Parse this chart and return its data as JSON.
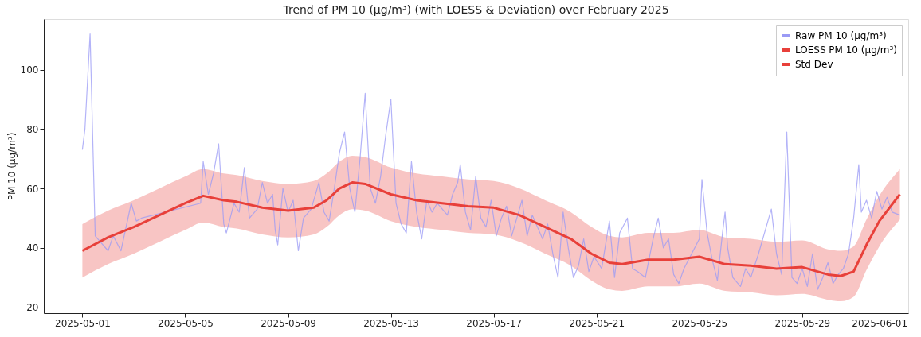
{
  "chart_data": {
    "type": "line",
    "title": "Trend of PM 10 (µg/m³) (with LOESS & Deviation) over February 2025",
    "ylabel": "PM 10 (µg/m³)",
    "xlim": [
      "2025-04-29T12:00",
      "2025-06-02T03:00"
    ],
    "ylim": [
      18,
      117
    ],
    "xticks": [
      "2025-05-01",
      "2025-05-05",
      "2025-05-09",
      "2025-05-13",
      "2025-05-17",
      "2025-05-21",
      "2025-05-25",
      "2025-05-29",
      "2025-06-01"
    ],
    "yticks": [
      20,
      40,
      60,
      80,
      100
    ],
    "grid": false,
    "legend": "top right",
    "marker": "none",
    "line_style": "solid",
    "annotations": [
      "Std Dev"
    ],
    "series": [
      {
        "name": "Raw PM 10 (µg/m³)",
        "color": "#9a9af5",
        "x": [
          "2025-05-01T00:00",
          "2025-05-01T02:24",
          "2025-05-01T07:12",
          "2025-05-01T12:00",
          "2025-05-01T16:48",
          "2025-05-02T00:00",
          "2025-05-02T04:48",
          "2025-05-02T12:00",
          "2025-05-02T16:48",
          "2025-05-02T21:36",
          "2025-05-03T02:24",
          "2025-05-03T07:12",
          "2025-05-05T14:24",
          "2025-05-05T16:48",
          "2025-05-05T21:36",
          "2025-05-06T02:24",
          "2025-05-06T07:12",
          "2025-05-06T12:00",
          "2025-05-06T14:24",
          "2025-05-06T21:36",
          "2025-05-07T02:24",
          "2025-05-07T07:12",
          "2025-05-07T12:00",
          "2025-05-07T19:12",
          "2025-05-08T00:00",
          "2025-05-08T04:48",
          "2025-05-08T09:36",
          "2025-05-08T12:00",
          "2025-05-08T14:24",
          "2025-05-08T19:12",
          "2025-05-09T00:00",
          "2025-05-09T04:48",
          "2025-05-09T09:36",
          "2025-05-09T14:24",
          "2025-05-09T21:36",
          "2025-05-10T04:48",
          "2025-05-10T09:36",
          "2025-05-10T14:24",
          "2025-05-10T19:12",
          "2025-05-11T00:00",
          "2025-05-11T04:48",
          "2025-05-11T09:36",
          "2025-05-11T14:24",
          "2025-05-11T19:12",
          "2025-05-12T00:00",
          "2025-05-12T04:48",
          "2025-05-12T09:36",
          "2025-05-12T14:24",
          "2025-05-12T19:12",
          "2025-05-13T00:00",
          "2025-05-13T04:48",
          "2025-05-13T09:36",
          "2025-05-13T14:24",
          "2025-05-13T19:12",
          "2025-05-14T00:00",
          "2025-05-14T04:48",
          "2025-05-14T09:36",
          "2025-05-14T14:24",
          "2025-05-14T19:12",
          "2025-05-15T00:00",
          "2025-05-15T04:48",
          "2025-05-15T09:36",
          "2025-05-15T14:24",
          "2025-05-15T16:48",
          "2025-05-15T21:36",
          "2025-05-16T02:24",
          "2025-05-16T07:12",
          "2025-05-16T12:00",
          "2025-05-16T16:48",
          "2025-05-16T21:36",
          "2025-05-17T02:24",
          "2025-05-17T07:12",
          "2025-05-17T12:00",
          "2025-05-17T16:48",
          "2025-05-17T21:36",
          "2025-05-18T02:24",
          "2025-05-18T07:12",
          "2025-05-18T12:00",
          "2025-05-18T16:48",
          "2025-05-18T21:36",
          "2025-05-19T02:24",
          "2025-05-19T07:12",
          "2025-05-19T12:00",
          "2025-05-19T16:48",
          "2025-05-19T21:36",
          "2025-05-20T02:24",
          "2025-05-20T07:12",
          "2025-05-20T12:00",
          "2025-05-20T16:48",
          "2025-05-20T21:36",
          "2025-05-21T04:48",
          "2025-05-21T12:00",
          "2025-05-21T16:48",
          "2025-05-21T21:36",
          "2025-05-22T04:48",
          "2025-05-22T09:36",
          "2025-05-22T14:24",
          "2025-05-22T21:36",
          "2025-05-23T04:48",
          "2025-05-23T09:36",
          "2025-05-23T14:24",
          "2025-05-23T19:12",
          "2025-05-24T00:00",
          "2025-05-24T04:48",
          "2025-05-24T09:36",
          "2025-05-24T16:48",
          "2025-05-25T00:00",
          "2025-05-25T02:24",
          "2025-05-25T07:12",
          "2025-05-25T12:00",
          "2025-05-25T16:48",
          "2025-05-25T21:36",
          "2025-05-26T00:00",
          "2025-05-26T02:24",
          "2025-05-26T07:12",
          "2025-05-26T14:24",
          "2025-05-26T19:12",
          "2025-05-27T00:00",
          "2025-05-27T07:12",
          "2025-05-27T19:12",
          "2025-05-28T00:00",
          "2025-05-28T04:48",
          "2025-05-28T09:36",
          "2025-05-28T14:24",
          "2025-05-28T19:12",
          "2025-05-29T00:00",
          "2025-05-29T04:48",
          "2025-05-29T09:36",
          "2025-05-29T14:24",
          "2025-05-29T19:12",
          "2025-05-30T00:00",
          "2025-05-30T04:48",
          "2025-05-30T09:36",
          "2025-05-30T14:24",
          "2025-05-30T19:12",
          "2025-05-31T00:00",
          "2025-05-31T04:48",
          "2025-05-31T07:12",
          "2025-05-31T12:00",
          "2025-05-31T16:48",
          "2025-05-31T21:36",
          "2025-06-01T02:24",
          "2025-06-01T07:12",
          "2025-06-01T12:00",
          "2025-06-01T19:12"
        ],
        "values": [
          73,
          80,
          112,
          44,
          42,
          39,
          44,
          39,
          47,
          55,
          49,
          50,
          55,
          69,
          58,
          65,
          75,
          48,
          45,
          55,
          52,
          67,
          50,
          53,
          62,
          55,
          58,
          46,
          41,
          60,
          52,
          56,
          39,
          50,
          53,
          62,
          52,
          49,
          60,
          72,
          79,
          60,
          52,
          70,
          92,
          60,
          55,
          64,
          78,
          90,
          55,
          48,
          45,
          69,
          52,
          43,
          56,
          52,
          55,
          53,
          51,
          58,
          62,
          68,
          52,
          46,
          64,
          50,
          47,
          56,
          44,
          50,
          54,
          44,
          50,
          56,
          44,
          51,
          47,
          43,
          48,
          38,
          30,
          52,
          40,
          30,
          34,
          43,
          32,
          37,
          33,
          49,
          30,
          45,
          50,
          33,
          32,
          30,
          43,
          50,
          40,
          43,
          31,
          28,
          33,
          38,
          43,
          63,
          45,
          36,
          29,
          45,
          52,
          40,
          30,
          27,
          33,
          30,
          38,
          53,
          38,
          31,
          79,
          30,
          28,
          33,
          27,
          38,
          26,
          30,
          35,
          28,
          31,
          33,
          38,
          50,
          68,
          52,
          56,
          50,
          59,
          53,
          57,
          52,
          51
        ]
      },
      {
        "name": "LOESS PM 10 (µg/m³)",
        "color": "#e8403a",
        "x": [
          "2025-05-01T00:00",
          "2025-05-02T00:00",
          "2025-05-03T00:00",
          "2025-05-04T00:00",
          "2025-05-05T00:00",
          "2025-05-05T16:48",
          "2025-05-06T12:00",
          "2025-05-07T00:00",
          "2025-05-08T00:00",
          "2025-05-09T00:00",
          "2025-05-10T00:00",
          "2025-05-10T12:00",
          "2025-05-11T00:00",
          "2025-05-11T12:00",
          "2025-05-12T00:00",
          "2025-05-13T00:00",
          "2025-05-14T00:00",
          "2025-05-15T00:00",
          "2025-05-16T00:00",
          "2025-05-17T00:00",
          "2025-05-18T00:00",
          "2025-05-19T00:00",
          "2025-05-20T00:00",
          "2025-05-20T19:12",
          "2025-05-21T12:00",
          "2025-05-22T00:00",
          "2025-05-23T00:00",
          "2025-05-24T00:00",
          "2025-05-25T00:00",
          "2025-05-26T00:00",
          "2025-05-27T00:00",
          "2025-05-28T00:00",
          "2025-05-29T00:00",
          "2025-05-30T00:00",
          "2025-05-30T12:00",
          "2025-05-31T00:00",
          "2025-05-31T12:00",
          "2025-06-01T00:00",
          "2025-06-01T19:12"
        ],
        "values": [
          39,
          43.5,
          47,
          51,
          55,
          57.5,
          56,
          55.5,
          53.5,
          52.5,
          53.5,
          56,
          60,
          62,
          61.5,
          58,
          56,
          55,
          54,
          53.5,
          51,
          47,
          43,
          38,
          35,
          34.5,
          36,
          36,
          37,
          34.5,
          34,
          33,
          33.5,
          31,
          30.5,
          32,
          41,
          49,
          58
        ],
        "lower": [
          30,
          34.5,
          38,
          42,
          46,
          48.5,
          47,
          46.5,
          44.5,
          43.5,
          44.5,
          47,
          51,
          53,
          52.5,
          49,
          47,
          46,
          45,
          44.5,
          42,
          38,
          34,
          29,
          26,
          25.5,
          27,
          27,
          28,
          25.5,
          25,
          24,
          24.5,
          22.5,
          22,
          23.5,
          32.5,
          40.5,
          49.5
        ],
        "upper": [
          48,
          52.5,
          56,
          60,
          64,
          66.5,
          65,
          64.5,
          62.5,
          61.5,
          62.5,
          65,
          69,
          71,
          70.5,
          67,
          65,
          64,
          63,
          62.5,
          60,
          56,
          52,
          47,
          44,
          43.5,
          45,
          45,
          46,
          43.5,
          43,
          42,
          42.5,
          39.5,
          39,
          40.5,
          49.5,
          57.5,
          66.5
        ]
      }
    ]
  }
}
